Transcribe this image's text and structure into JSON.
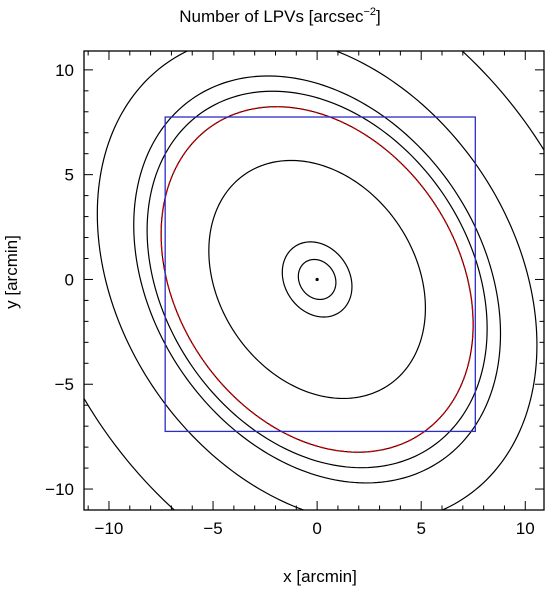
{
  "chart_data": {
    "type": "contour",
    "title": "Number of LPVs [arcsec",
    "title_superscript": "−2",
    "title_suffix": "]",
    "xlabel": "x [arcmin]",
    "ylabel": "y [arcmin]",
    "xlim": [
      -11.2,
      10.9
    ],
    "ylim": [
      -11.0,
      10.9
    ],
    "xticks": [
      -10,
      -5,
      0,
      5,
      10
    ],
    "yticks": [
      -10,
      -5,
      0,
      5,
      10
    ],
    "xtick_labels": [
      "−10",
      "−5",
      "0",
      "5",
      "10"
    ],
    "ytick_labels": [
      "−10",
      "−5",
      "0",
      "5",
      "10"
    ],
    "minor_tick_step": 1,
    "grid": false,
    "contour_center": [
      0,
      0
    ],
    "contour_orientation_deg": 125,
    "contours": [
      {
        "semi_major": 0.15,
        "semi_minor": 0.15,
        "color": "#000000",
        "kind": "center-dot"
      },
      {
        "semi_major": 1.0,
        "semi_minor": 0.85,
        "color": "#000000"
      },
      {
        "semi_major": 1.9,
        "semi_minor": 1.55,
        "color": "#000000"
      },
      {
        "semi_major": 6.1,
        "semi_minor": 4.7,
        "color": "#000000"
      },
      {
        "semi_major": 8.9,
        "semi_minor": 6.7,
        "color": "#cc0000",
        "dashed": true
      },
      {
        "semi_major": 9.7,
        "semi_minor": 7.3,
        "color": "#000000"
      },
      {
        "semi_major": 10.5,
        "semi_minor": 7.85,
        "color": "#000000"
      },
      {
        "semi_major": 12.6,
        "semi_minor": 9.4,
        "color": "#000000"
      },
      {
        "semi_major": 17.0,
        "semi_minor": 12.5,
        "color": "#000000"
      }
    ],
    "box": {
      "x_min": -7.3,
      "x_max": 7.6,
      "y_min": -7.25,
      "y_max": 7.75,
      "color": "#2d2dc8"
    }
  }
}
